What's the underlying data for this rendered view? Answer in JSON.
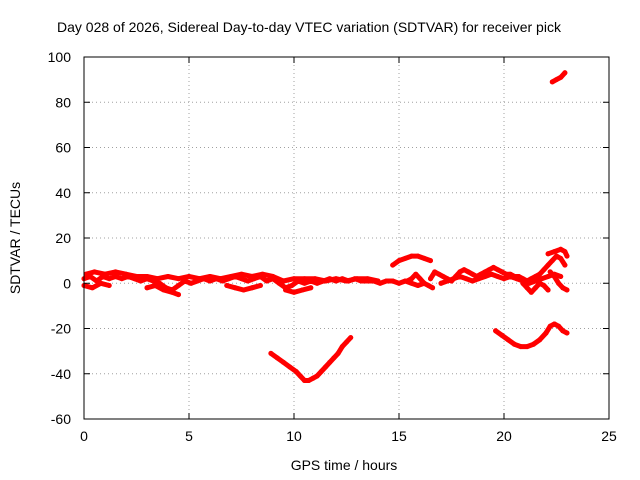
{
  "chart_data": {
    "type": "scatter",
    "title": "Day 028 of 2026, Sidereal Day-to-day VTEC variation (SDTVAR) for receiver pick",
    "xlabel": "GPS time / hours",
    "ylabel": "SDTVAR / TECUs",
    "xlim": [
      0,
      25
    ],
    "ylim": [
      -60,
      100
    ],
    "xticks": [
      0,
      5,
      10,
      15,
      20,
      25
    ],
    "yticks": [
      -60,
      -40,
      -20,
      0,
      20,
      40,
      60,
      80,
      100
    ],
    "xtick_labels": [
      "0",
      "5",
      "10",
      "15",
      "20",
      "25"
    ],
    "ytick_labels": [
      "-60",
      "-40",
      "-20",
      "0",
      "20",
      "40",
      "60",
      "80",
      "100"
    ],
    "grid": true,
    "legend": "none",
    "marker_color": "#ff0000",
    "series": [
      {
        "points": [
          [
            0.0,
            2
          ],
          [
            0.3,
            3
          ],
          [
            0.6,
            1
          ],
          [
            0.9,
            3
          ],
          [
            1.2,
            2
          ],
          [
            1.5,
            3
          ],
          [
            1.8,
            2
          ],
          [
            2.1,
            3
          ],
          [
            2.4,
            2
          ],
          [
            2.7,
            1
          ],
          [
            3.0,
            2
          ],
          [
            3.3,
            1
          ],
          [
            3.6,
            0
          ],
          [
            3.9,
            -2
          ],
          [
            4.2,
            -3
          ],
          [
            4.5,
            -1
          ],
          [
            4.8,
            1
          ],
          [
            5.1,
            0
          ],
          [
            5.4,
            1
          ],
          [
            5.7,
            2
          ],
          [
            6.0,
            1
          ],
          [
            6.3,
            2
          ],
          [
            6.6,
            1
          ],
          [
            6.9,
            2
          ],
          [
            7.2,
            3
          ],
          [
            7.5,
            2
          ],
          [
            7.8,
            1
          ],
          [
            8.1,
            2
          ],
          [
            8.4,
            3
          ],
          [
            8.7,
            1
          ],
          [
            9.0,
            2
          ],
          [
            9.3,
            0
          ],
          [
            9.6,
            -2
          ],
          [
            9.9,
            -1
          ],
          [
            10.2,
            1
          ],
          [
            10.5,
            0
          ],
          [
            10.8,
            1
          ],
          [
            11.1,
            0
          ],
          [
            11.4,
            1
          ],
          [
            11.7,
            2
          ],
          [
            12.0,
            1
          ],
          [
            12.3,
            2
          ],
          [
            12.6,
            1
          ],
          [
            12.9,
            2
          ],
          [
            13.2,
            1
          ],
          [
            13.5,
            1
          ],
          [
            13.8,
            1
          ],
          [
            14.1,
            0
          ],
          [
            14.4,
            1
          ],
          [
            14.7,
            1
          ],
          [
            15.0,
            0
          ],
          [
            15.3,
            1
          ],
          [
            15.6,
            0
          ],
          [
            15.9,
            -1
          ],
          [
            16.2,
            0
          ]
        ]
      },
      {
        "points": [
          [
            0.1,
            4
          ],
          [
            0.5,
            5
          ],
          [
            1.0,
            4
          ],
          [
            1.5,
            5
          ],
          [
            2.0,
            4
          ],
          [
            2.5,
            3
          ],
          [
            3.0,
            3
          ],
          [
            3.5,
            2
          ],
          [
            4.0,
            3
          ],
          [
            4.5,
            2
          ],
          [
            5.0,
            3
          ],
          [
            5.5,
            2
          ],
          [
            6.0,
            3
          ],
          [
            6.5,
            2
          ],
          [
            7.0,
            3
          ],
          [
            7.5,
            4
          ],
          [
            8.0,
            3
          ],
          [
            8.5,
            4
          ],
          [
            9.0,
            3
          ],
          [
            9.5,
            1
          ],
          [
            10.0,
            2
          ],
          [
            10.5,
            2
          ],
          [
            11.0,
            2
          ],
          [
            11.5,
            1
          ],
          [
            12.0,
            2
          ],
          [
            12.5,
            1
          ],
          [
            13.0,
            2
          ],
          [
            13.5,
            2
          ],
          [
            14.0,
            1
          ]
        ]
      },
      {
        "points": [
          [
            0.0,
            -1
          ],
          [
            0.4,
            -2
          ],
          [
            0.8,
            0
          ],
          [
            1.2,
            -1
          ]
        ]
      },
      {
        "points": [
          [
            3.0,
            -2
          ],
          [
            3.4,
            -1
          ],
          [
            3.8,
            -3
          ],
          [
            4.2,
            -4
          ],
          [
            4.5,
            -5
          ]
        ]
      },
      {
        "points": [
          [
            6.8,
            -1
          ],
          [
            7.2,
            -2
          ],
          [
            7.6,
            -3
          ],
          [
            8.0,
            -2
          ],
          [
            8.4,
            -1
          ]
        ]
      },
      {
        "points": [
          [
            9.6,
            -3
          ],
          [
            10.0,
            -4
          ],
          [
            10.4,
            -3
          ],
          [
            10.8,
            -2
          ]
        ]
      },
      {
        "points": [
          [
            14.7,
            8
          ],
          [
            15.0,
            10
          ],
          [
            15.3,
            11
          ],
          [
            15.6,
            12
          ],
          [
            15.9,
            12
          ],
          [
            16.2,
            11
          ],
          [
            16.5,
            10
          ]
        ]
      },
      {
        "points": [
          [
            15.4,
            1
          ],
          [
            15.6,
            2
          ],
          [
            15.8,
            4
          ],
          [
            16.0,
            2
          ],
          [
            16.2,
            0
          ],
          [
            16.4,
            -1
          ],
          [
            16.6,
            -2
          ]
        ]
      },
      {
        "points": [
          [
            16.5,
            2
          ],
          [
            16.7,
            5
          ],
          [
            16.9,
            4
          ],
          [
            17.1,
            3
          ],
          [
            17.3,
            2
          ],
          [
            17.5,
            1
          ],
          [
            17.7,
            3
          ],
          [
            17.9,
            5
          ],
          [
            18.1,
            6
          ],
          [
            18.3,
            5
          ],
          [
            18.5,
            4
          ],
          [
            18.7,
            3
          ],
          [
            18.9,
            4
          ],
          [
            19.1,
            5
          ],
          [
            19.3,
            6
          ],
          [
            19.5,
            7
          ],
          [
            19.7,
            6
          ],
          [
            19.9,
            5
          ],
          [
            20.1,
            4
          ],
          [
            20.3,
            4
          ],
          [
            20.5,
            3
          ],
          [
            20.7,
            3
          ],
          [
            20.9,
            2
          ],
          [
            21.1,
            1
          ],
          [
            21.3,
            2
          ],
          [
            21.5,
            3
          ],
          [
            21.7,
            4
          ],
          [
            21.9,
            6
          ],
          [
            22.1,
            8
          ],
          [
            22.3,
            10
          ],
          [
            22.5,
            12
          ],
          [
            22.7,
            11
          ],
          [
            22.9,
            8
          ]
        ]
      },
      {
        "points": [
          [
            17.0,
            0
          ],
          [
            17.3,
            1
          ],
          [
            17.6,
            2
          ],
          [
            17.9,
            3
          ],
          [
            18.2,
            2
          ],
          [
            18.5,
            1
          ],
          [
            18.8,
            2
          ],
          [
            19.1,
            3
          ],
          [
            19.4,
            4
          ],
          [
            19.7,
            3
          ],
          [
            20.0,
            2
          ],
          [
            20.3,
            3
          ],
          [
            20.6,
            2
          ],
          [
            20.9,
            1
          ],
          [
            21.2,
            0
          ],
          [
            21.5,
            1
          ],
          [
            21.8,
            2
          ],
          [
            22.1,
            3
          ],
          [
            22.4,
            4
          ],
          [
            22.7,
            3
          ]
        ]
      },
      {
        "points": [
          [
            20.9,
            0
          ],
          [
            21.1,
            -2
          ],
          [
            21.3,
            -4
          ],
          [
            21.5,
            -2
          ],
          [
            21.7,
            0
          ],
          [
            21.9,
            -1
          ],
          [
            22.1,
            -3
          ]
        ]
      },
      {
        "points": [
          [
            22.2,
            5
          ],
          [
            22.4,
            3
          ],
          [
            22.6,
            0
          ],
          [
            22.8,
            -2
          ],
          [
            23.0,
            -3
          ]
        ]
      },
      {
        "points": [
          [
            22.1,
            13
          ],
          [
            22.4,
            14
          ],
          [
            22.7,
            15
          ],
          [
            22.9,
            14
          ],
          [
            23.0,
            12
          ]
        ]
      },
      {
        "points": [
          [
            22.3,
            89
          ],
          [
            22.5,
            90
          ],
          [
            22.7,
            91
          ],
          [
            22.9,
            93
          ]
        ]
      },
      {
        "points": [
          [
            8.9,
            -31
          ],
          [
            9.2,
            -33
          ],
          [
            9.5,
            -35
          ],
          [
            9.8,
            -37
          ],
          [
            10.1,
            -39
          ],
          [
            10.3,
            -41
          ],
          [
            10.5,
            -43
          ],
          [
            10.7,
            -43
          ],
          [
            10.9,
            -42
          ],
          [
            11.1,
            -41
          ],
          [
            11.3,
            -39
          ],
          [
            11.5,
            -37
          ],
          [
            11.7,
            -35
          ],
          [
            11.9,
            -33
          ],
          [
            12.1,
            -31
          ],
          [
            12.3,
            -28
          ],
          [
            12.5,
            -26
          ],
          [
            12.7,
            -24
          ]
        ]
      },
      {
        "points": [
          [
            19.6,
            -21
          ],
          [
            19.9,
            -23
          ],
          [
            20.2,
            -25
          ],
          [
            20.5,
            -27
          ],
          [
            20.8,
            -28
          ],
          [
            21.1,
            -28
          ],
          [
            21.4,
            -27
          ],
          [
            21.7,
            -25
          ],
          [
            22.0,
            -22
          ],
          [
            22.2,
            -19
          ],
          [
            22.4,
            -18
          ],
          [
            22.6,
            -19
          ],
          [
            22.8,
            -21
          ],
          [
            23.0,
            -22
          ]
        ]
      }
    ]
  }
}
